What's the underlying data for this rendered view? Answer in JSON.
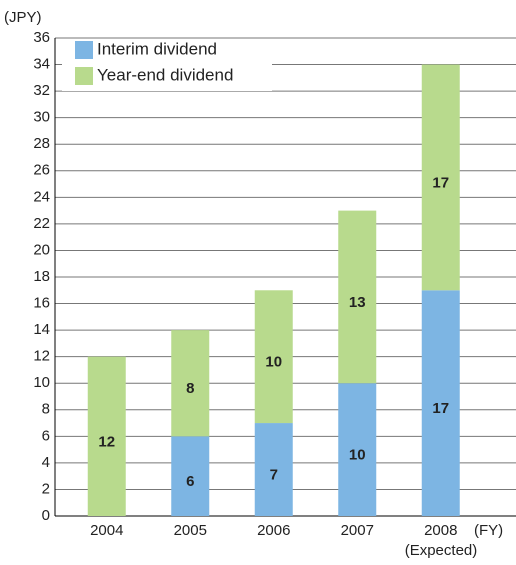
{
  "chart_data": {
    "type": "stacked_bar",
    "y_axis_label": "(JPY)",
    "x_axis_label": "(FY)",
    "annotation": "(Expected)",
    "categories": [
      "2004",
      "2005",
      "2006",
      "2007",
      "2008"
    ],
    "series": [
      {
        "name": "Interim dividend",
        "color": "#7db5e3",
        "values": [
          null,
          6,
          7,
          10,
          17
        ]
      },
      {
        "name": "Year-end dividend",
        "color": "#b8da8d",
        "values": [
          12,
          8,
          10,
          13,
          17
        ]
      }
    ],
    "ylim": [
      0,
      36
    ],
    "yticks": [
      0,
      2,
      4,
      6,
      8,
      10,
      12,
      14,
      16,
      18,
      20,
      22,
      24,
      26,
      28,
      30,
      32,
      34,
      36
    ],
    "grid": true,
    "legend": "upper left"
  }
}
